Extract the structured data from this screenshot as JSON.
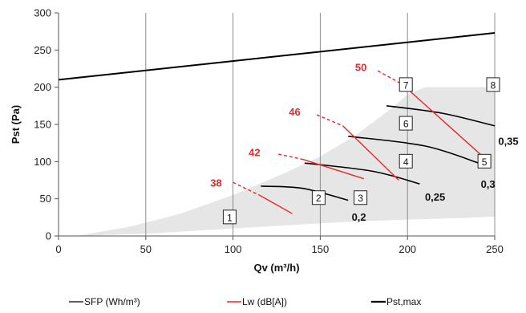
{
  "chart_data": {
    "type": "line",
    "xlabel": "Qv (m³/h)",
    "ylabel": "Pst (Pa)",
    "xlim": [
      0,
      250
    ],
    "ylim": [
      0,
      300
    ],
    "x_ticks": [
      0,
      50,
      100,
      150,
      200,
      250
    ],
    "y_ticks": [
      0,
      50,
      100,
      150,
      200,
      250,
      300
    ],
    "grid": "vertical",
    "legend_position": "bottom",
    "legend": [
      {
        "label": "SFP (Wh/m³)",
        "color": "#000000"
      },
      {
        "label": "Lw (dB[A])",
        "color": "#e8262b"
      },
      {
        "label": "Pst,max",
        "color": "#000000"
      }
    ],
    "operating_area": {
      "color": "#e6e6e6",
      "lower_boundary": [
        [
          10,
          0
        ],
        [
          50,
          3
        ],
        [
          100,
          10
        ],
        [
          150,
          17
        ],
        [
          175,
          20
        ],
        [
          200,
          22
        ],
        [
          230,
          24
        ],
        [
          250,
          26
        ]
      ],
      "upper_boundary": [
        [
          10,
          0
        ],
        [
          40,
          12
        ],
        [
          70,
          30
        ],
        [
          100,
          55
        ],
        [
          130,
          85
        ],
        [
          150,
          107
        ],
        [
          170,
          135
        ],
        [
          190,
          170
        ],
        [
          200,
          190
        ],
        [
          210,
          200
        ],
        [
          250,
          200
        ]
      ]
    },
    "pst_max": {
      "name": "Pst,max",
      "x": [
        0,
        250
      ],
      "y": [
        210,
        273
      ],
      "color": "#000000"
    },
    "sfp_curves": [
      {
        "label": "0,2",
        "x": [
          116,
          140,
          166
        ],
        "y": [
          67,
          64,
          48
        ],
        "label_at": [
          168,
          26
        ]
      },
      {
        "label": "0,25",
        "x": [
          141,
          180,
          207
        ],
        "y": [
          98,
          87,
          70
        ],
        "label_at": [
          210,
          53
        ]
      },
      {
        "label": "0,3",
        "x": [
          166,
          210,
          242
        ],
        "y": [
          134,
          121,
          97
        ],
        "label_at": [
          242,
          70
        ]
      },
      {
        "label": "0,35",
        "x": [
          188,
          220,
          250
        ],
        "y": [
          175,
          165,
          148
        ],
        "label_at": [
          252,
          128
        ]
      }
    ],
    "lw_curves": [
      {
        "label": "38",
        "solid": [
          [
            115,
            55
          ],
          [
            134,
            30
          ]
        ],
        "dashed": [
          [
            100,
            72
          ],
          [
            115,
            55
          ]
        ],
        "label_at": [
          87,
          72
        ]
      },
      {
        "label": "42",
        "solid": [
          [
            140,
            103
          ],
          [
            175,
            77
          ]
        ],
        "dashed": [
          [
            126,
            110
          ],
          [
            140,
            103
          ]
        ],
        "label_at": [
          109,
          113
        ]
      },
      {
        "label": "46",
        "solid": [
          [
            163,
            148
          ],
          [
            195,
            75
          ]
        ],
        "dashed": [
          [
            148,
            163
          ],
          [
            163,
            148
          ]
        ],
        "label_at": [
          132,
          167
        ]
      },
      {
        "label": "50",
        "solid": [
          [
            197,
            204
          ],
          [
            245,
            103
          ]
        ],
        "dashed": [
          [
            183,
            222
          ],
          [
            197,
            204
          ]
        ],
        "label_at": [
          170,
          227
        ]
      }
    ],
    "points": [
      {
        "label": "1",
        "x": 99,
        "y": 25
      },
      {
        "label": "2",
        "x": 150,
        "y": 51
      },
      {
        "label": "3",
        "x": 174,
        "y": 51
      },
      {
        "label": "4",
        "x": 200,
        "y": 100
      },
      {
        "label": "5",
        "x": 245,
        "y": 100
      },
      {
        "label": "6",
        "x": 200,
        "y": 151
      },
      {
        "label": "7",
        "x": 200,
        "y": 203
      },
      {
        "label": "8",
        "x": 250,
        "y": 203
      }
    ]
  }
}
